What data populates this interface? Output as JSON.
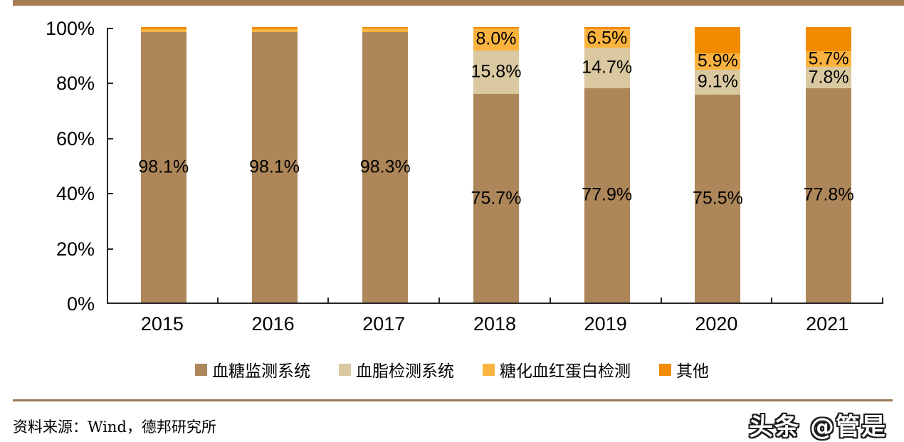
{
  "page": {
    "top_bar_color": "#A67C52",
    "divider_color": "#9C7A57",
    "axis_color": "#262626",
    "source_text": "资料来源：Wind，德邦研究所",
    "watermark_text": "头条 @管是"
  },
  "chart_data": {
    "type": "bar",
    "stacked": true,
    "percent": true,
    "grid": false,
    "legend_position": "bottom",
    "categories": [
      "2015",
      "2016",
      "2017",
      "2018",
      "2019",
      "2020",
      "2021"
    ],
    "series": [
      {
        "name": "血糖监测系统",
        "color": "#AD8659",
        "values": [
          98.1,
          98.1,
          98.3,
          75.7,
          77.9,
          75.5,
          77.8
        ],
        "labels": [
          "98.1%",
          "98.1%",
          "98.3%",
          "75.7%",
          "77.9%",
          "75.5%",
          "77.8%"
        ]
      },
      {
        "name": "血脂检测系统",
        "color": "#D9C8A0",
        "values": [
          0,
          0,
          0,
          15.8,
          14.7,
          9.1,
          7.8
        ],
        "labels": [
          null,
          null,
          null,
          "15.8%",
          "14.7%",
          "9.1%",
          "7.8%"
        ]
      },
      {
        "name": "糖化血红蛋白检测",
        "color": "#FBB33F",
        "values": [
          1.2,
          1.2,
          1.1,
          8.0,
          6.5,
          5.9,
          5.7
        ],
        "labels": [
          null,
          null,
          null,
          "8.0%",
          "6.5%",
          "5.9%",
          "5.7%"
        ]
      },
      {
        "name": "其他",
        "color": "#F28B00",
        "values": [
          0.7,
          0.7,
          0.6,
          0.5,
          0.9,
          9.5,
          8.7
        ],
        "labels": [
          null,
          null,
          null,
          null,
          null,
          null,
          null
        ]
      }
    ],
    "y_ticks": [
      "0%",
      "20%",
      "40%",
      "60%",
      "80%",
      "100%"
    ],
    "ylim": [
      0,
      100
    ]
  }
}
